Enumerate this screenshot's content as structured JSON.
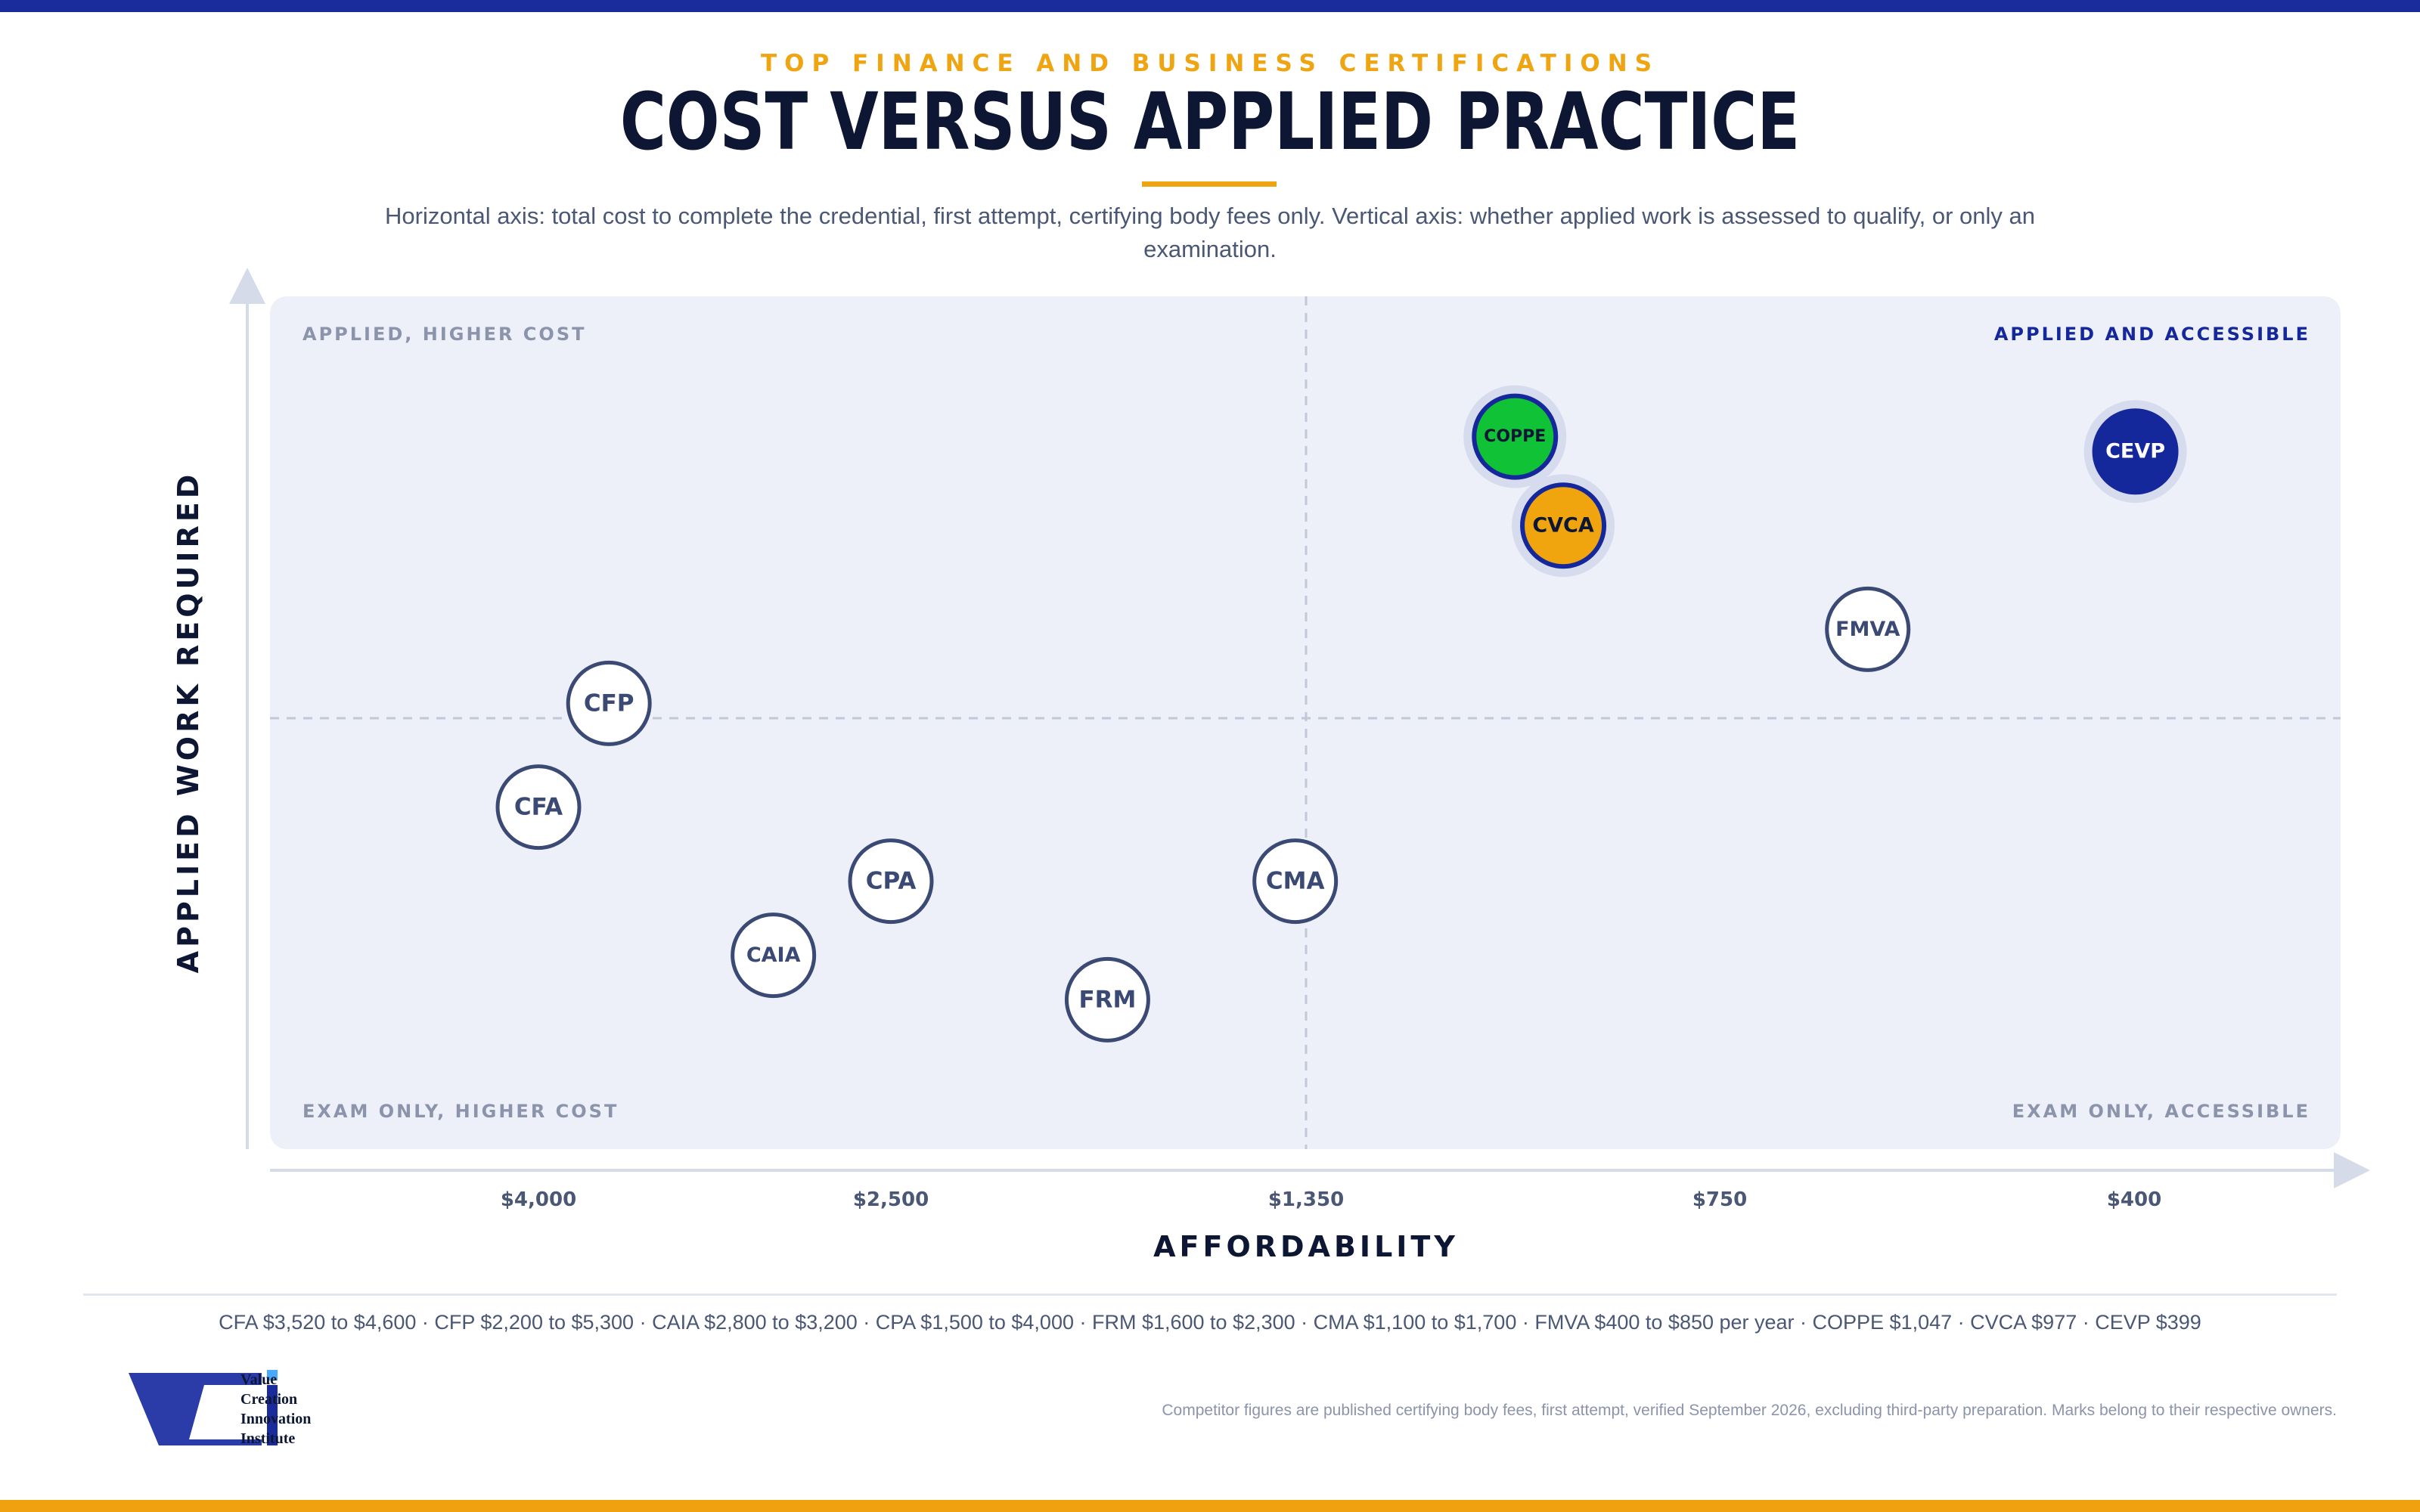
{
  "header": {
    "eyebrow": "TOP FINANCE AND BUSINESS CERTIFICATIONS",
    "title": "COST VERSUS APPLIED PRACTICE",
    "subtitle": "Horizontal axis: total cost to complete the credential, first attempt, certifying body fees only. Vertical axis: whether applied work is assessed to qualify, or only an examination."
  },
  "colors": {
    "top_bar": "#1a2b9b",
    "bottom_bar": "#f0a10f",
    "accent_gold": "#efa412",
    "navy": "#0d1733",
    "plot_bg": "#edf0f8",
    "marker_outline": "#3b4a74",
    "highlight_blue": "#14279b",
    "highlight_green": "#0fc236",
    "highlight_gold": "#f0a50f"
  },
  "chart_data": {
    "type": "scatter",
    "xlabel": "AFFORDABILITY",
    "ylabel": "APPLIED WORK REQUIRED",
    "x_tick_labels": [
      "$4,000",
      "$2,500",
      "$1,350",
      "$750",
      "$400"
    ],
    "x_tick_values": [
      4000,
      2500,
      1350,
      750,
      400
    ],
    "x_scale": "ordinal cost scale, decreasing cost to the right",
    "y_scale": "qualitative (exam only at bottom, applied work at top)",
    "ylim": [
      0,
      100
    ],
    "quadrant_dividers": {
      "x_cost": 1350,
      "y_level": 50
    },
    "quadrant_labels": {
      "top_left": "APPLIED, HIGHER COST",
      "top_right": "APPLIED AND ACCESSIBLE",
      "bottom_left": "EXAM ONLY, HIGHER COST",
      "bottom_right": "EXAM ONLY, ACCESSIBLE"
    },
    "grid": false,
    "points": [
      {
        "label": "CFA",
        "cost": 4000,
        "applied": 38,
        "style": "outline"
      },
      {
        "label": "CFP",
        "cost": 3700,
        "applied": 52,
        "style": "outline"
      },
      {
        "label": "CAIA",
        "cost": 3000,
        "applied": 18,
        "style": "outline"
      },
      {
        "label": "CPA",
        "cost": 2500,
        "applied": 28,
        "style": "outline"
      },
      {
        "label": "FRM",
        "cost": 1900,
        "applied": 12,
        "style": "outline"
      },
      {
        "label": "CMA",
        "cost": 1380,
        "applied": 28,
        "style": "outline"
      },
      {
        "label": "COPPE",
        "cost": 1047,
        "applied": 88,
        "style": "green"
      },
      {
        "label": "CVCA",
        "cost": 977,
        "applied": 76,
        "style": "gold"
      },
      {
        "label": "FMVA",
        "cost": 625,
        "applied": 62,
        "style": "outline"
      },
      {
        "label": "CEVP",
        "cost": 399,
        "applied": 86,
        "style": "blue"
      }
    ]
  },
  "footer": {
    "cost_ranges": "CFA $3,520 to $4,600 · CFP $2,200 to $5,300 · CAIA $2,800 to $3,200 · CPA $1,500 to $4,000 · FRM $1,600 to $2,300 · CMA $1,100 to $1,700 · FMVA $400 to $850 per year · COPPE $1,047 · CVCA $977 · CEVP $399",
    "logo_lines": [
      "Value",
      "Creation",
      "Innovation",
      "Institute"
    ],
    "disclaimer": "Competitor figures are published certifying body fees, first attempt, verified September 2026, excluding third-party preparation. Marks belong to their respective owners."
  }
}
